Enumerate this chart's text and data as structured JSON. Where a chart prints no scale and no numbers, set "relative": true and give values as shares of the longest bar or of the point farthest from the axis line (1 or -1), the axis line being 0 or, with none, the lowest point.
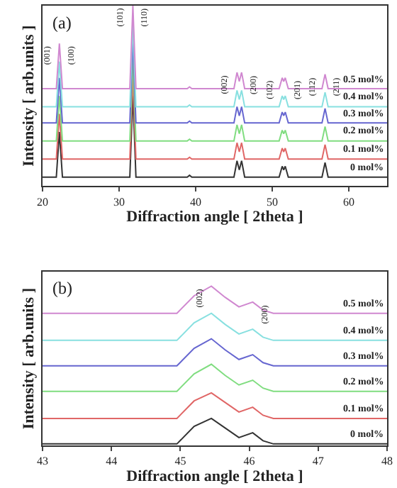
{
  "chart_data": [
    {
      "type": "line",
      "relative": true,
      "xlabel": "Diffraction angle [ 2theta ]",
      "ylabel": "Intensity [ arb.units ]",
      "xlim": [
        20,
        65
      ],
      "xticks": [
        20,
        30,
        40,
        50,
        60
      ],
      "marker": "none",
      "x": [
        20,
        21.8,
        22.2,
        22.6,
        31.4,
        31.8,
        32.2,
        38.9,
        39.2,
        39.5,
        45.0,
        45.4,
        45.7,
        46.0,
        46.4,
        50.9,
        51.3,
        51.5,
        51.7,
        52.1,
        56.5,
        56.9,
        57.3,
        65
      ],
      "annotations": [
        "(a)",
        {
          "text": "(001)",
          "x": 22.2,
          "y": 0.79
        },
        {
          "text": "(100)",
          "x": 22.2,
          "y": 0.79
        },
        {
          "text": "(101)",
          "x": 31.8,
          "y": 1.0
        },
        {
          "text": "(110)",
          "x": 31.8,
          "y": 1.0
        },
        {
          "text": "(002)",
          "x": 45.4,
          "y": 0.63
        },
        {
          "text": "(200)",
          "x": 46.0,
          "y": 0.63
        },
        {
          "text": "(102)",
          "x": 51.3,
          "y": 0.6
        },
        {
          "text": "(201)",
          "x": 51.7,
          "y": 0.6
        },
        {
          "text": "(112)",
          "x": 56.9,
          "y": 0.62
        },
        {
          "text": "(211)",
          "x": 56.9,
          "y": 0.62
        }
      ],
      "series": [
        {
          "name": "0 mol%",
          "color": "#333333",
          "values": [
            0.05,
            0.05,
            0.3,
            0.05,
            0.05,
            0.51,
            0.05,
            0.05,
            0.06,
            0.05,
            0.05,
            0.14,
            0.09,
            0.14,
            0.05,
            0.05,
            0.11,
            0.09,
            0.11,
            0.05,
            0.05,
            0.13,
            0.05,
            0.05
          ]
        },
        {
          "name": "0.1 mol%",
          "color": "#e06666",
          "values": [
            0.15,
            0.15,
            0.4,
            0.15,
            0.15,
            0.61,
            0.15,
            0.15,
            0.16,
            0.15,
            0.15,
            0.24,
            0.19,
            0.24,
            0.15,
            0.15,
            0.21,
            0.19,
            0.21,
            0.15,
            0.15,
            0.23,
            0.15,
            0.15
          ]
        },
        {
          "name": "0.2 mol%",
          "color": "#80dd80",
          "values": [
            0.25,
            0.25,
            0.5,
            0.25,
            0.25,
            0.71,
            0.25,
            0.25,
            0.26,
            0.25,
            0.25,
            0.34,
            0.29,
            0.34,
            0.25,
            0.25,
            0.31,
            0.29,
            0.31,
            0.25,
            0.25,
            0.33,
            0.25,
            0.25
          ]
        },
        {
          "name": "0.3 mol%",
          "color": "#6666d0",
          "values": [
            0.35,
            0.35,
            0.6,
            0.35,
            0.35,
            0.81,
            0.35,
            0.35,
            0.36,
            0.35,
            0.35,
            0.44,
            0.39,
            0.44,
            0.35,
            0.35,
            0.41,
            0.39,
            0.41,
            0.35,
            0.35,
            0.43,
            0.35,
            0.35
          ]
        },
        {
          "name": "0.4 mol%",
          "color": "#88e0e0",
          "values": [
            0.44,
            0.44,
            0.69,
            0.44,
            0.44,
            0.9,
            0.44,
            0.44,
            0.45,
            0.44,
            0.44,
            0.53,
            0.48,
            0.53,
            0.44,
            0.44,
            0.5,
            0.48,
            0.5,
            0.44,
            0.44,
            0.52,
            0.44,
            0.44
          ]
        },
        {
          "name": "0.5 mol%",
          "color": "#d088d0",
          "values": [
            0.54,
            0.54,
            0.79,
            0.54,
            0.54,
            1.0,
            0.54,
            0.54,
            0.55,
            0.54,
            0.54,
            0.63,
            0.58,
            0.63,
            0.54,
            0.54,
            0.6,
            0.58,
            0.6,
            0.54,
            0.54,
            0.62,
            0.54,
            0.54
          ]
        }
      ]
    },
    {
      "type": "line",
      "relative": true,
      "xlabel": "Diffraction angle [ 2theta ]",
      "ylabel": "Intensity [ arb.units ]",
      "xlim": [
        43,
        48
      ],
      "xticks": [
        43,
        44,
        45,
        46,
        47,
        48
      ],
      "marker": "none",
      "x": [
        43,
        44.95,
        45.2,
        45.45,
        45.65,
        45.85,
        46.05,
        46.2,
        46.35,
        48
      ],
      "annotations": [
        "(b)",
        {
          "text": "(002)",
          "x": 45.45,
          "y": 1.0
        },
        {
          "text": "(200)",
          "x": 46.05,
          "y": 0.9
        }
      ],
      "series": [
        {
          "name": "0 mol%",
          "color": "#333333",
          "values": [
            0.01,
            0.01,
            0.12,
            0.17,
            0.11,
            0.05,
            0.08,
            0.03,
            0.01,
            0.01
          ]
        },
        {
          "name": "0.1 mol%",
          "color": "#e06666",
          "values": [
            0.17,
            0.17,
            0.28,
            0.33,
            0.27,
            0.21,
            0.24,
            0.19,
            0.17,
            0.17
          ]
        },
        {
          "name": "0.2 mol%",
          "color": "#80dd80",
          "values": [
            0.34,
            0.34,
            0.45,
            0.51,
            0.44,
            0.38,
            0.41,
            0.36,
            0.34,
            0.34
          ]
        },
        {
          "name": "0.3 mol%",
          "color": "#6666d0",
          "values": [
            0.5,
            0.5,
            0.61,
            0.67,
            0.6,
            0.54,
            0.57,
            0.52,
            0.5,
            0.5
          ]
        },
        {
          "name": "0.4 mol%",
          "color": "#88e0e0",
          "values": [
            0.66,
            0.66,
            0.77,
            0.83,
            0.76,
            0.7,
            0.73,
            0.68,
            0.66,
            0.66
          ]
        },
        {
          "name": "0.5 mol%",
          "color": "#d088d0",
          "values": [
            0.83,
            0.83,
            0.94,
            1.0,
            0.93,
            0.87,
            0.9,
            0.85,
            0.83,
            0.83
          ]
        }
      ]
    }
  ]
}
